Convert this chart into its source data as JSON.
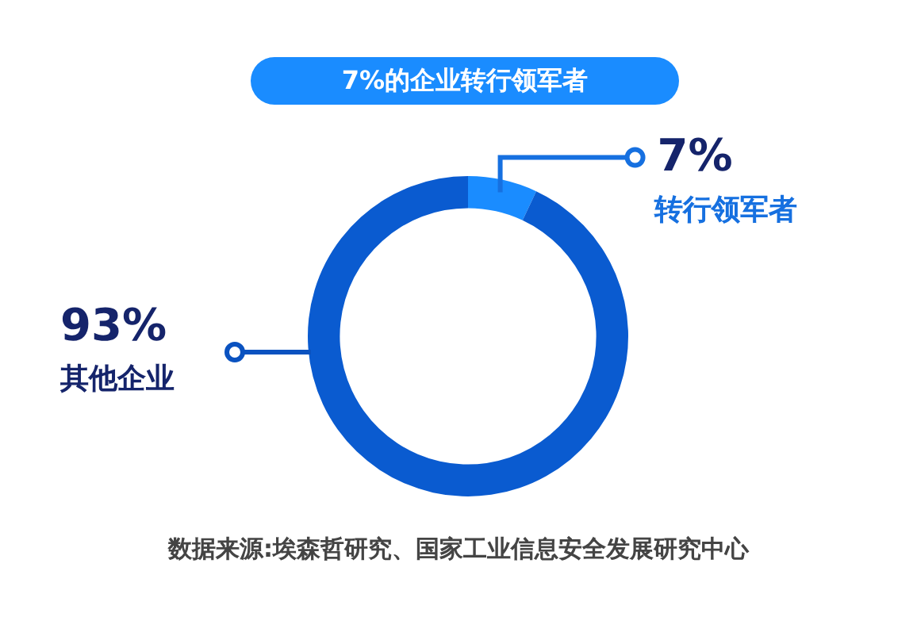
{
  "chart_data": {
    "type": "donut",
    "title": "7%的企业转行领军者",
    "categories": [
      "转行领军者",
      "其他企业"
    ],
    "values": [
      7,
      93
    ],
    "colors": [
      "#1a8cff",
      "#0a5bd0"
    ],
    "value_labels": [
      "7%",
      "93%"
    ],
    "legend": false,
    "annotations": [
      "数据来源:埃森哲研究、国家工业信息安全发展研究中心"
    ]
  }
}
